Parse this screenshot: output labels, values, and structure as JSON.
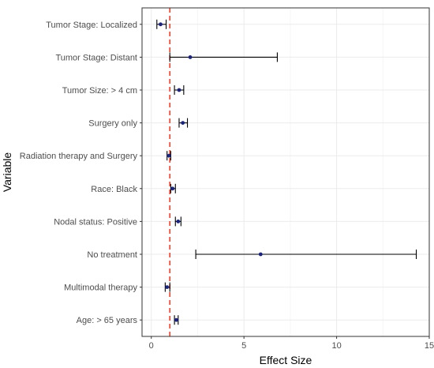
{
  "chart_data": {
    "type": "forest",
    "xlabel": "Effect Size",
    "ylabel": "Variable",
    "xlim": [
      -0.5,
      15
    ],
    "xticks": [
      0,
      5,
      10,
      15
    ],
    "reference_line": 1,
    "grid": true,
    "rows": [
      {
        "label": "Tumor Stage: Localized",
        "estimate": 0.5,
        "lower": 0.3,
        "upper": 0.8
      },
      {
        "label": "Tumor Stage: Distant",
        "estimate": 2.1,
        "lower": 1.0,
        "upper": 6.8
      },
      {
        "label": "Tumor Size: > 4 cm",
        "estimate": 1.5,
        "lower": 1.25,
        "upper": 1.75
      },
      {
        "label": "Surgery only",
        "estimate": 1.7,
        "lower": 1.5,
        "upper": 1.95
      },
      {
        "label": "Radiation therapy and Surgery",
        "estimate": 0.95,
        "lower": 0.85,
        "upper": 1.05
      },
      {
        "label": "Race: Black",
        "estimate": 1.15,
        "lower": 1.05,
        "upper": 1.3
      },
      {
        "label": "Nodal status: Positive",
        "estimate": 1.45,
        "lower": 1.3,
        "upper": 1.6
      },
      {
        "label": "No treatment",
        "estimate": 5.9,
        "lower": 2.4,
        "upper": 14.3
      },
      {
        "label": "Multimodal therapy",
        "estimate": 0.85,
        "lower": 0.75,
        "upper": 1.0
      },
      {
        "label": "Age: > 65 years",
        "estimate": 1.35,
        "lower": 1.25,
        "upper": 1.45
      }
    ],
    "colors": {
      "point": "#1a237e",
      "errorbar": "#000000",
      "reference_line": "#e8402a",
      "grid_major": "#ebebeb",
      "grid_minor": "#f5f5f5",
      "panel_border": "#333333"
    }
  }
}
